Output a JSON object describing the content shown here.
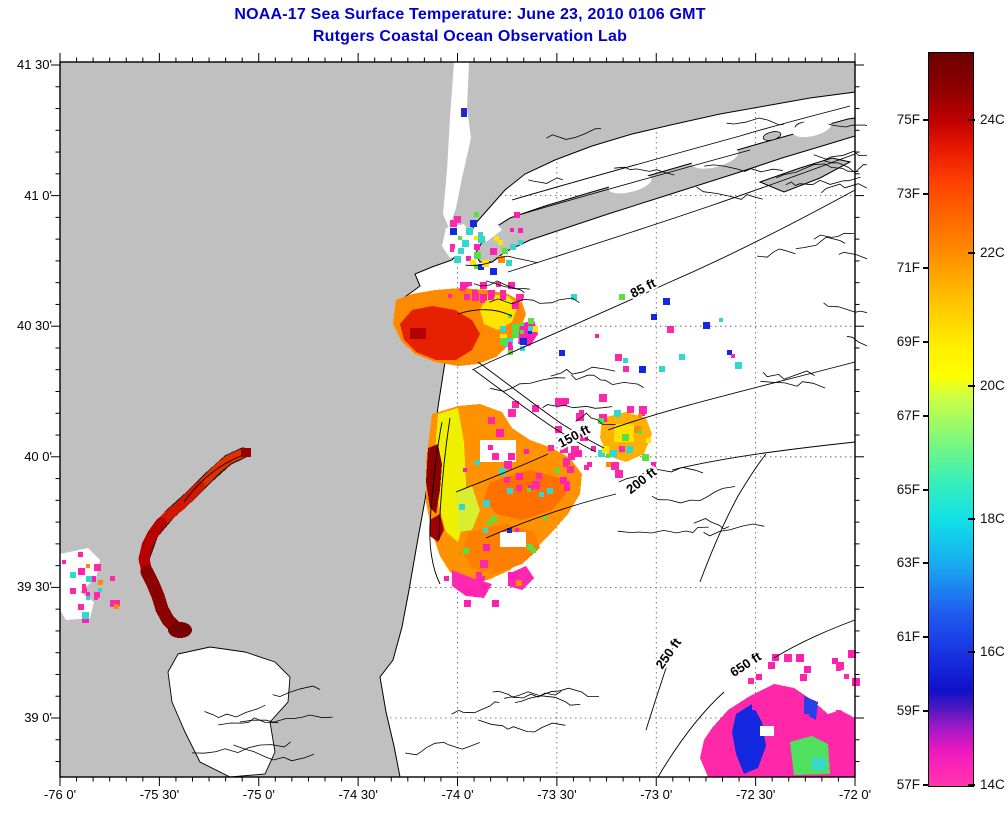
{
  "title": {
    "line1": "NOAA-17 Sea Surface Temperature:  June 23, 2010 0106 GMT",
    "line2": "Rutgers Coastal Ocean Observation Lab",
    "color": "#0000CC"
  },
  "map": {
    "x_axis": {
      "tick_labels": [
        "-76 0'",
        "-75 30'",
        "-75 0'",
        "-74 30'",
        "-74 0'",
        "-73 30'",
        "-73 0'",
        "-72 30'",
        "-72 0'"
      ]
    },
    "y_axis": {
      "tick_labels": [
        "41 30'",
        "41 0'",
        "40 30'",
        "40 0'",
        "39 30'",
        "39 0'"
      ]
    },
    "depth_labels": [
      {
        "text": "85 ft"
      },
      {
        "text": "150 ft"
      },
      {
        "text": "200 ft"
      },
      {
        "text": "250 ft"
      },
      {
        "text": "650 ft"
      }
    ],
    "land_color": "#C0C0C0",
    "ocean_color": "#FFFFFF",
    "contour_color": "#000000"
  },
  "colorbar": {
    "f_labels": [
      "75F",
      "73F",
      "71F",
      "69F",
      "67F",
      "65F",
      "63F",
      "61F",
      "59F",
      "57F"
    ],
    "c_labels": [
      "24C",
      "22C",
      "20C",
      "18C",
      "16C",
      "14C"
    ],
    "gradient": [
      [
        "#6E0000",
        "0%"
      ],
      [
        "#8E0000",
        "5%"
      ],
      [
        "#C00000",
        "9.3%"
      ],
      [
        "#E81800",
        "13%"
      ],
      [
        "#FF4400",
        "18%"
      ],
      [
        "#FF8C00",
        "27.3%"
      ],
      [
        "#FFC400",
        "34%"
      ],
      [
        "#FFEE00",
        "40%"
      ],
      [
        "#FFFF00",
        "44%"
      ],
      [
        "#CCFF44",
        "47%"
      ],
      [
        "#7CF87C",
        "53%"
      ],
      [
        "#3CF0B4",
        "58%"
      ],
      [
        "#10E0E8",
        "63.8%"
      ],
      [
        "#18A8F0",
        "70%"
      ],
      [
        "#2060F0",
        "76%"
      ],
      [
        "#1830E0",
        "82.3%"
      ],
      [
        "#1010C8",
        "87%"
      ],
      [
        "#5018C0",
        "89.5%"
      ],
      [
        "#A018C8",
        "92%"
      ],
      [
        "#E818C0",
        "95%"
      ],
      [
        "#FF28B4",
        "98%"
      ],
      [
        "#FF38AC",
        "100%"
      ]
    ]
  },
  "sst_palette": {
    "dark_red": "#7A0000",
    "red": "#E62000",
    "orange": "#FF8A00",
    "yellow": "#FFE400",
    "green": "#58E040",
    "cyan": "#30D8D0",
    "blue": "#1428E0",
    "magenta": "#FF20B0",
    "pink": "#FF28A8"
  }
}
